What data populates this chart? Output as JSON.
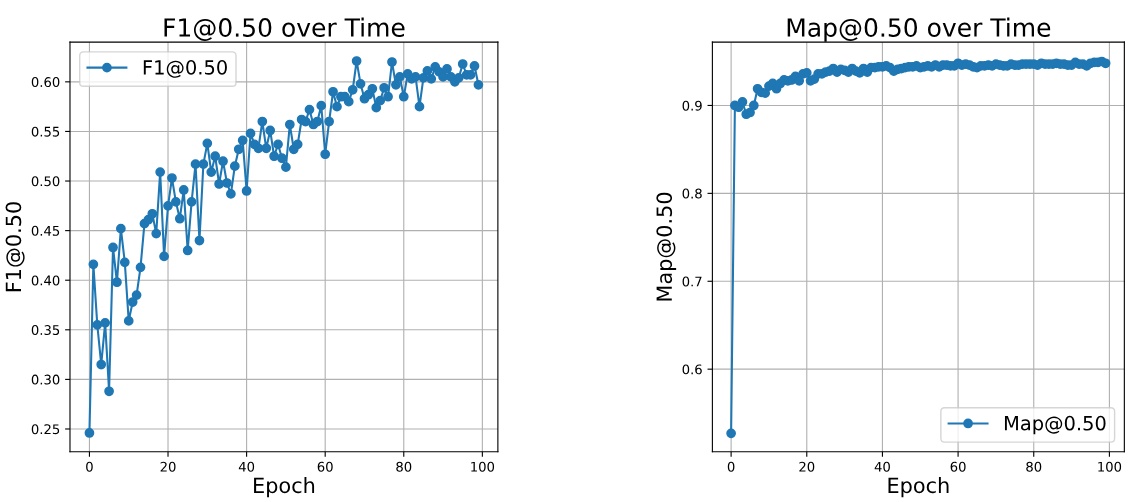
{
  "chart_data": [
    {
      "type": "line",
      "title": "F1@0.50 over Time",
      "xlabel": "Epoch",
      "ylabel": "F1@0.50",
      "x": [
        0,
        1,
        2,
        3,
        4,
        5,
        6,
        7,
        8,
        9,
        10,
        11,
        12,
        13,
        14,
        15,
        16,
        17,
        18,
        19,
        20,
        21,
        22,
        23,
        24,
        25,
        26,
        27,
        28,
        29,
        30,
        31,
        32,
        33,
        34,
        35,
        36,
        37,
        38,
        39,
        40,
        41,
        42,
        43,
        44,
        45,
        46,
        47,
        48,
        49,
        50,
        51,
        52,
        53,
        54,
        55,
        56,
        57,
        58,
        59,
        60,
        61,
        62,
        63,
        64,
        65,
        66,
        67,
        68,
        69,
        70,
        71,
        72,
        73,
        74,
        75,
        76,
        77,
        78,
        79,
        80,
        81,
        82,
        83,
        84,
        85,
        86,
        87,
        88,
        89,
        90,
        91,
        92,
        93,
        94,
        95,
        96,
        97,
        98,
        99
      ],
      "series": [
        {
          "name": "F1@0.50",
          "color": "#1f77b4",
          "values": [
            0.246,
            0.416,
            0.355,
            0.315,
            0.357,
            0.288,
            0.433,
            0.398,
            0.452,
            0.418,
            0.359,
            0.378,
            0.385,
            0.413,
            0.457,
            0.461,
            0.467,
            0.447,
            0.509,
            0.424,
            0.475,
            0.503,
            0.479,
            0.462,
            0.491,
            0.43,
            0.479,
            0.517,
            0.44,
            0.517,
            0.538,
            0.509,
            0.525,
            0.497,
            0.52,
            0.498,
            0.487,
            0.515,
            0.532,
            0.541,
            0.49,
            0.548,
            0.537,
            0.533,
            0.56,
            0.533,
            0.551,
            0.525,
            0.537,
            0.523,
            0.514,
            0.557,
            0.532,
            0.537,
            0.562,
            0.56,
            0.572,
            0.557,
            0.56,
            0.576,
            0.527,
            0.56,
            0.59,
            0.575,
            0.585,
            0.585,
            0.58,
            0.592,
            0.621,
            0.598,
            0.583,
            0.587,
            0.593,
            0.574,
            0.581,
            0.594,
            0.585,
            0.62,
            0.597,
            0.605,
            0.585,
            0.608,
            0.603,
            0.605,
            0.575,
            0.604,
            0.611,
            0.603,
            0.615,
            0.61,
            0.605,
            0.613,
            0.605,
            0.6,
            0.604,
            0.618,
            0.607,
            0.607,
            0.616,
            0.597
          ]
        }
      ],
      "xlim": [
        -4.95,
        103.95
      ],
      "xticks": [
        0,
        20,
        40,
        60,
        80,
        100
      ],
      "ylim": [
        0.227,
        0.64
      ],
      "yticks": [
        0.25,
        {
          "value": 0.3,
          "label": "0.30"
        },
        0.35,
        {
          "value": 0.4,
          "label": "0.40"
        },
        0.45,
        {
          "value": 0.5,
          "label": "0.50"
        },
        0.55,
        {
          "value": 0.6,
          "label": "0.60"
        }
      ],
      "grid": true,
      "legend": "top left",
      "marker": "circle",
      "line_style": "solid"
    },
    {
      "type": "line",
      "title": "Map@0.50 over Time",
      "xlabel": "Epoch",
      "ylabel": "Map@0.50",
      "x": [
        0,
        1,
        2,
        3,
        4,
        5,
        6,
        7,
        8,
        9,
        10,
        11,
        12,
        13,
        14,
        15,
        16,
        17,
        18,
        19,
        20,
        21,
        22,
        23,
        24,
        25,
        26,
        27,
        28,
        29,
        30,
        31,
        32,
        33,
        34,
        35,
        36,
        37,
        38,
        39,
        40,
        41,
        42,
        43,
        44,
        45,
        46,
        47,
        48,
        49,
        50,
        51,
        52,
        53,
        54,
        55,
        56,
        57,
        58,
        59,
        60,
        61,
        62,
        63,
        64,
        65,
        66,
        67,
        68,
        69,
        70,
        71,
        72,
        73,
        74,
        75,
        76,
        77,
        78,
        79,
        80,
        81,
        82,
        83,
        84,
        85,
        86,
        87,
        88,
        89,
        90,
        91,
        92,
        93,
        94,
        95,
        96,
        97,
        98,
        99
      ],
      "series": [
        {
          "name": "Map@0.50",
          "color": "#1f77b4",
          "values": [
            0.527,
            0.9,
            0.898,
            0.904,
            0.89,
            0.892,
            0.9,
            0.919,
            0.915,
            0.914,
            0.922,
            0.925,
            0.919,
            0.925,
            0.929,
            0.928,
            0.929,
            0.933,
            0.928,
            0.936,
            0.937,
            0.928,
            0.93,
            0.936,
            0.936,
            0.938,
            0.939,
            0.942,
            0.938,
            0.941,
            0.94,
            0.938,
            0.942,
            0.939,
            0.937,
            0.942,
            0.938,
            0.943,
            0.943,
            0.944,
            0.944,
            0.945,
            0.943,
            0.939,
            0.941,
            0.942,
            0.943,
            0.944,
            0.944,
            0.945,
            0.943,
            0.944,
            0.945,
            0.944,
            0.946,
            0.944,
            0.946,
            0.946,
            0.945,
            0.945,
            0.948,
            0.946,
            0.947,
            0.946,
            0.944,
            0.943,
            0.945,
            0.945,
            0.946,
            0.945,
            0.947,
            0.946,
            0.945,
            0.945,
            0.947,
            0.946,
            0.946,
            0.947,
            0.947,
            0.947,
            0.947,
            0.946,
            0.948,
            0.947,
            0.947,
            0.947,
            0.948,
            0.947,
            0.947,
            0.946,
            0.946,
            0.949,
            0.947,
            0.947,
            0.945,
            0.948,
            0.949,
            0.949,
            0.95,
            0.948
          ]
        }
      ],
      "xlim": [
        -4.95,
        103.95
      ],
      "xticks": [
        0,
        20,
        40,
        60,
        80,
        100
      ],
      "ylim": [
        0.506,
        0.972
      ],
      "yticks": [
        0.6,
        0.7,
        0.8,
        0.9
      ],
      "grid": true,
      "legend": "bottom right",
      "marker": "circle",
      "line_style": "solid"
    }
  ]
}
